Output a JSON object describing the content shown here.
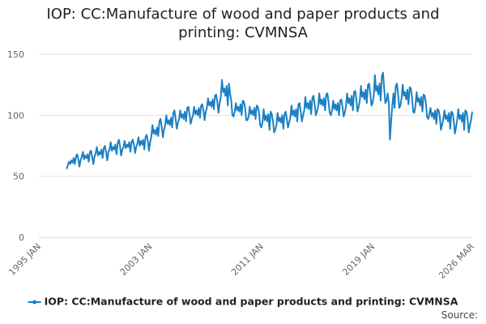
{
  "chart_data": {
    "type": "line",
    "title": "IOP: CC:Manufacture of wood and paper products and printing: CVMNSA",
    "source": "Source:",
    "ylim": [
      0,
      150
    ],
    "yticks": [
      0,
      50,
      100,
      150
    ],
    "grid": true,
    "categories": [
      "1995 JAN",
      null,
      null,
      null,
      null,
      null,
      null,
      null,
      null,
      null,
      null,
      null,
      null,
      null,
      null,
      null,
      null,
      null,
      null,
      null,
      null,
      null,
      null,
      null,
      null,
      null,
      null,
      null,
      null,
      null,
      null,
      null,
      null,
      null,
      null,
      null,
      null,
      null,
      null,
      null,
      null,
      null,
      null,
      null,
      null,
      null,
      null,
      null,
      null,
      null,
      null,
      null,
      null,
      null,
      null,
      null,
      null,
      null,
      null,
      null,
      null,
      null,
      null,
      null,
      null,
      null,
      null,
      null,
      null,
      null,
      null,
      null,
      null,
      null,
      null,
      null,
      null,
      null,
      null,
      null,
      null,
      null,
      null,
      null,
      null,
      null,
      null,
      null,
      null,
      null,
      null,
      null,
      null,
      null,
      null,
      null,
      "2003 JAN",
      null,
      null,
      null,
      null,
      null,
      null,
      null,
      null,
      null,
      null,
      null,
      null,
      null,
      null,
      null,
      null,
      null,
      null,
      null,
      null,
      null,
      null,
      null,
      null,
      null,
      null,
      null,
      null,
      null,
      null,
      null,
      null,
      null,
      null,
      null,
      null,
      null,
      null,
      null,
      null,
      null,
      null,
      null,
      null,
      null,
      null,
      null,
      null,
      null,
      null,
      null,
      null,
      null,
      null,
      null,
      null,
      null,
      null,
      null,
      null,
      null,
      null,
      null,
      null,
      null,
      null,
      null,
      null,
      null,
      null,
      null,
      null,
      null,
      null,
      null,
      null,
      null,
      null,
      null,
      null,
      null,
      null,
      null,
      null,
      null,
      null,
      null,
      null,
      null,
      null,
      null,
      null,
      null,
      null,
      null,
      "2011 JAN",
      null,
      null,
      null,
      null,
      null,
      null,
      null,
      null,
      null,
      null,
      null,
      null,
      null,
      null,
      null,
      null,
      null,
      null,
      null,
      null,
      null,
      null,
      null,
      null,
      null,
      null,
      null,
      null,
      null,
      null,
      null,
      null,
      null,
      null,
      null,
      null,
      null,
      null,
      null,
      null,
      null,
      null,
      null,
      null,
      null,
      null,
      null,
      null,
      null,
      null,
      null,
      null,
      null,
      null,
      null,
      null,
      null,
      null,
      null,
      null,
      null,
      null,
      null,
      null,
      null,
      null,
      null,
      null,
      null,
      null,
      null,
      null,
      null,
      null,
      null,
      null,
      null,
      null,
      null,
      null,
      null,
      null,
      null,
      null,
      null,
      null,
      null,
      null,
      null,
      null,
      null,
      null,
      null,
      null,
      null,
      "2019 JAN",
      null,
      null,
      null,
      null,
      null,
      null,
      null,
      null,
      null,
      null,
      null,
      null,
      null,
      null,
      null,
      null,
      null,
      null,
      null,
      null,
      null,
      null,
      null,
      null,
      null,
      null,
      null,
      null,
      null,
      null,
      null,
      null,
      null,
      null,
      null,
      null,
      null,
      null,
      null,
      null,
      null,
      null,
      null,
      null,
      null,
      null,
      null,
      null,
      null,
      null,
      null,
      null,
      null,
      null,
      null,
      null,
      null,
      null,
      null,
      null,
      null,
      null,
      null,
      null,
      null,
      null,
      null,
      null,
      null,
      null,
      null,
      null,
      null,
      null,
      null,
      null,
      null,
      null,
      null,
      null,
      null,
      null,
      null,
      null,
      null,
      "2026 MAR"
    ],
    "series": [
      {
        "name": "IOP: CC:Manufacture of wood and paper products and printing: CVMNSA",
        "color": "#1b80c4",
        "values": [
          null,
          null,
          null,
          null,
          null,
          null,
          null,
          null,
          null,
          null,
          null,
          null,
          null,
          null,
          null,
          null,
          null,
          null,
          null,
          null,
          null,
          null,
          null,
          null,
          56,
          59,
          62,
          60,
          63,
          61,
          65,
          60,
          66,
          68,
          64,
          58,
          63,
          66,
          70,
          64,
          67,
          65,
          68,
          62,
          70,
          71,
          66,
          60,
          66,
          69,
          74,
          67,
          70,
          68,
          72,
          65,
          73,
          75,
          70,
          63,
          70,
          72,
          78,
          71,
          74,
          72,
          76,
          68,
          77,
          80,
          75,
          67,
          72,
          74,
          79,
          73,
          76,
          74,
          78,
          70,
          78,
          80,
          76,
          69,
          74,
          77,
          82,
          75,
          79,
          76,
          80,
          72,
          82,
          84,
          79,
          71,
          78,
          82,
          92,
          85,
          88,
          84,
          90,
          83,
          95,
          97,
          91,
          82,
          88,
          92,
          100,
          93,
          96,
          92,
          98,
          90,
          102,
          104,
          97,
          89,
          94,
          97,
          104,
          98,
          101,
          97,
          103,
          95,
          106,
          107,
          101,
          93,
          97,
          100,
          107,
          101,
          104,
          100,
          106,
          98,
          108,
          109,
          104,
          96,
          103,
          106,
          114,
          108,
          111,
          107,
          113,
          105,
          116,
          117,
          111,
          102,
          110,
          115,
          129,
          119,
          122,
          116,
          124,
          108,
          126,
          118,
          112,
          100,
          99,
          103,
          110,
          104,
          107,
          103,
          109,
          100,
          112,
          111,
          106,
          96,
          96,
          99,
          107,
          101,
          104,
          100,
          106,
          97,
          108,
          107,
          102,
          92,
          90,
          94,
          105,
          96,
          100,
          95,
          101,
          88,
          103,
          101,
          95,
          86,
          88,
          92,
          102,
          95,
          98,
          94,
          100,
          89,
          101,
          103,
          97,
          90,
          94,
          98,
          108,
          100,
          104,
          99,
          105,
          95,
          109,
          110,
          103,
          95,
          100,
          104,
          115,
          106,
          110,
          105,
          112,
          101,
          114,
          116,
          109,
          100,
          103,
          107,
          118,
          109,
          113,
          108,
          114,
          104,
          117,
          118,
          111,
          102,
          100,
          104,
          112,
          105,
          109,
          104,
          110,
          100,
          112,
          113,
          107,
          99,
          102,
          107,
          118,
          110,
          114,
          108,
          116,
          104,
          119,
          120,
          113,
          103,
          107,
          112,
          124,
          115,
          119,
          113,
          121,
          110,
          125,
          126,
          118,
          108,
          110,
          116,
          133,
          120,
          124,
          117,
          126,
          112,
          132,
          135,
          122,
          110,
          112,
          118,
          110,
          80,
          95,
          108,
          118,
          106,
          124,
          126,
          118,
          106,
          108,
          114,
          125,
          116,
          119,
          113,
          121,
          109,
          123,
          122,
          115,
          103,
          102,
          108,
          119,
          111,
          114,
          108,
          115,
          103,
          117,
          116,
          110,
          99,
          97,
          101,
          106,
          99,
          102,
          97,
          104,
          93,
          105,
          104,
          99,
          88,
          92,
          97,
          104,
          97,
          100,
          95,
          102,
          89,
          103,
          102,
          96,
          85,
          90,
          96,
          105,
          97,
          100,
          95,
          102,
          88,
          104,
          103,
          97,
          86,
          92,
          96,
          103
        ]
      }
    ]
  }
}
